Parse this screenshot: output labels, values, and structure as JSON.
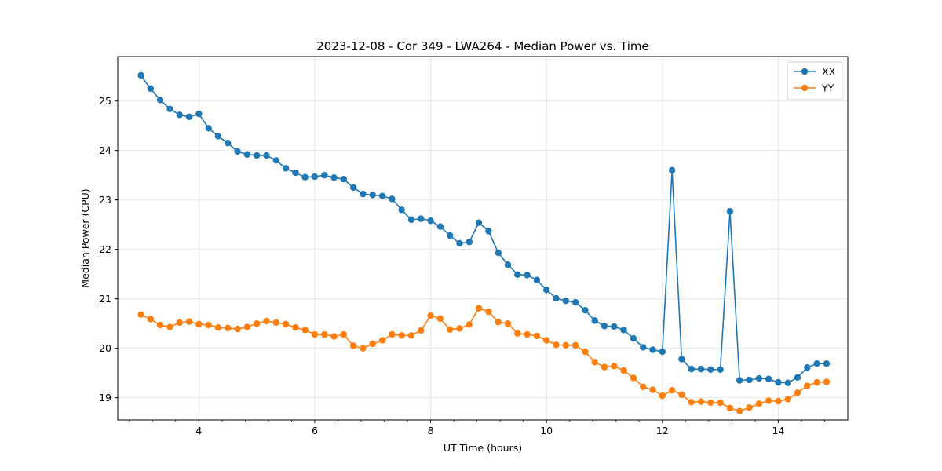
{
  "chart_data": {
    "type": "line",
    "title": "2023-12-08 - Cor 349 - LWA264 - Median Power vs. Time",
    "xlabel": "UT Time (hours)",
    "ylabel": "Median Power (CPU)",
    "xlim": [
      2.6,
      15.2
    ],
    "ylim": [
      18.55,
      25.9
    ],
    "xticks": [
      4,
      6,
      8,
      10,
      12,
      14
    ],
    "yticks": [
      19,
      20,
      21,
      22,
      23,
      24,
      25
    ],
    "grid": true,
    "legend_position": "top-right",
    "x": [
      3.0,
      3.167,
      3.333,
      3.5,
      3.667,
      3.833,
      4.0,
      4.167,
      4.333,
      4.5,
      4.667,
      4.833,
      5.0,
      5.167,
      5.333,
      5.5,
      5.667,
      5.833,
      6.0,
      6.167,
      6.333,
      6.5,
      6.667,
      6.833,
      7.0,
      7.167,
      7.333,
      7.5,
      7.667,
      7.833,
      8.0,
      8.167,
      8.333,
      8.5,
      8.667,
      8.833,
      9.0,
      9.167,
      9.333,
      9.5,
      9.667,
      9.833,
      10.0,
      10.167,
      10.333,
      10.5,
      10.667,
      10.833,
      11.0,
      11.167,
      11.333,
      11.5,
      11.667,
      11.833,
      12.0,
      12.167,
      12.333,
      12.5,
      12.667,
      12.833,
      13.0,
      13.167,
      13.333,
      13.5,
      13.667,
      13.833,
      14.0,
      14.167,
      14.333,
      14.5,
      14.667,
      14.833
    ],
    "series": [
      {
        "name": "XX",
        "color": "#1f77b4",
        "values": [
          25.52,
          25.25,
          25.02,
          24.84,
          24.72,
          24.68,
          24.74,
          24.45,
          24.29,
          24.15,
          23.98,
          23.92,
          23.9,
          23.9,
          23.8,
          23.64,
          23.55,
          23.46,
          23.47,
          23.5,
          23.45,
          23.42,
          23.25,
          23.12,
          23.1,
          23.08,
          23.02,
          22.8,
          22.6,
          22.62,
          22.58,
          22.46,
          22.28,
          22.12,
          22.15,
          22.54,
          22.37,
          21.93,
          21.69,
          21.49,
          21.48,
          21.38,
          21.18,
          21.01,
          20.96,
          20.93,
          20.77,
          20.56,
          20.45,
          20.44,
          20.37,
          20.2,
          20.02,
          19.97,
          19.93,
          23.6,
          19.78,
          19.58,
          19.58,
          19.57,
          19.57,
          22.77,
          19.35,
          19.36,
          19.39,
          19.38,
          19.31,
          19.3,
          19.41,
          19.61,
          19.69,
          19.69
        ]
      },
      {
        "name": "YY",
        "color": "#ff7f0e",
        "values": [
          20.68,
          20.59,
          20.47,
          20.43,
          20.52,
          20.54,
          20.49,
          20.47,
          20.42,
          20.41,
          20.39,
          20.43,
          20.5,
          20.55,
          20.52,
          20.49,
          20.42,
          20.37,
          20.28,
          20.28,
          20.24,
          20.28,
          20.05,
          20.0,
          20.09,
          20.16,
          20.28,
          20.26,
          20.26,
          20.36,
          20.66,
          20.6,
          20.38,
          20.4,
          20.48,
          20.81,
          20.74,
          20.53,
          20.5,
          20.3,
          20.28,
          20.25,
          20.16,
          20.07,
          20.06,
          20.06,
          19.93,
          19.72,
          19.62,
          19.64,
          19.55,
          19.4,
          19.22,
          19.16,
          19.04,
          19.15,
          19.06,
          18.91,
          18.92,
          18.9,
          18.9,
          18.79,
          18.73,
          18.8,
          18.88,
          18.94,
          18.93,
          18.97,
          19.1,
          19.24,
          19.31,
          19.32
        ]
      }
    ]
  }
}
